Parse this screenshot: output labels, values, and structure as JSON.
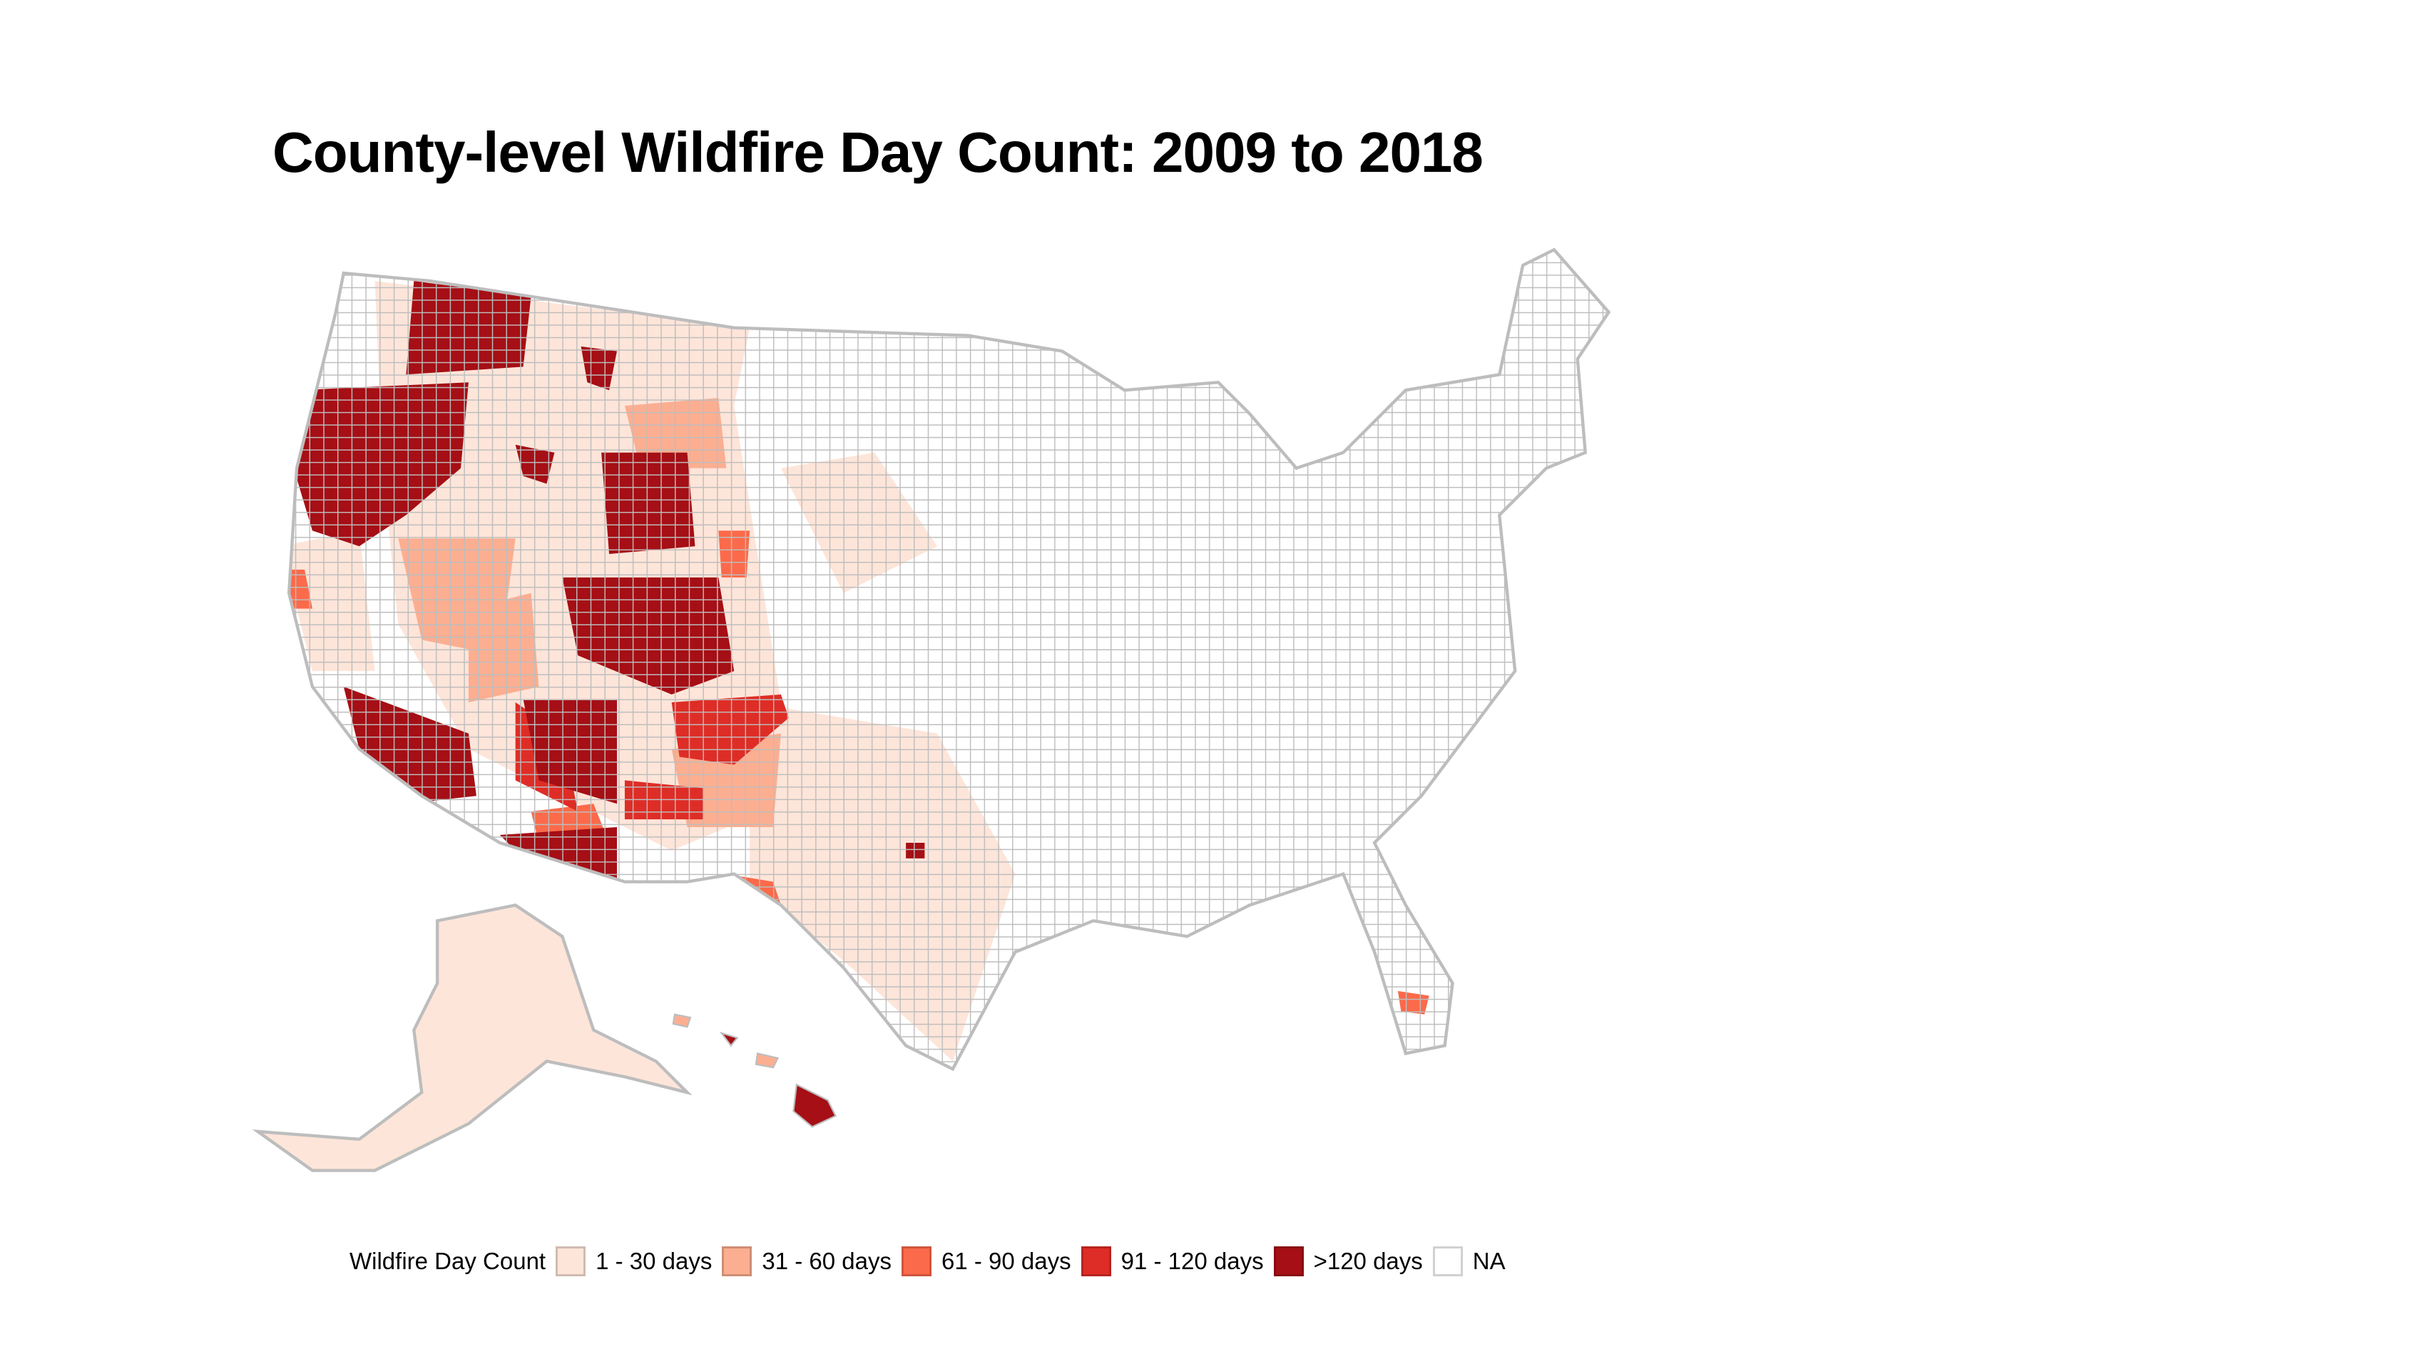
{
  "title": "County-level Wildfire Day Count: 2009 to 2018",
  "chart_data": {
    "type": "choropleth",
    "title": "County-level Wildfire Day Count: 2009 to 2018",
    "region": "United States counties",
    "legend": {
      "title": "Wildfire Day Count",
      "placement": "bottom",
      "classes": [
        {
          "label": "1 - 30 days",
          "color": "#FEE5D9"
        },
        {
          "label": "31 - 60 days",
          "color": "#FCAE91"
        },
        {
          "label": "61 - 90 days",
          "color": "#FB6A4A"
        },
        {
          "label": "91 - 120 days",
          "color": "#DE2D26"
        },
        {
          "label": ">120 days",
          "color": "#A50F15"
        },
        {
          "label": "NA",
          "color": "#FFFFFF"
        }
      ]
    },
    "border_color": "#BDBDBD"
  }
}
